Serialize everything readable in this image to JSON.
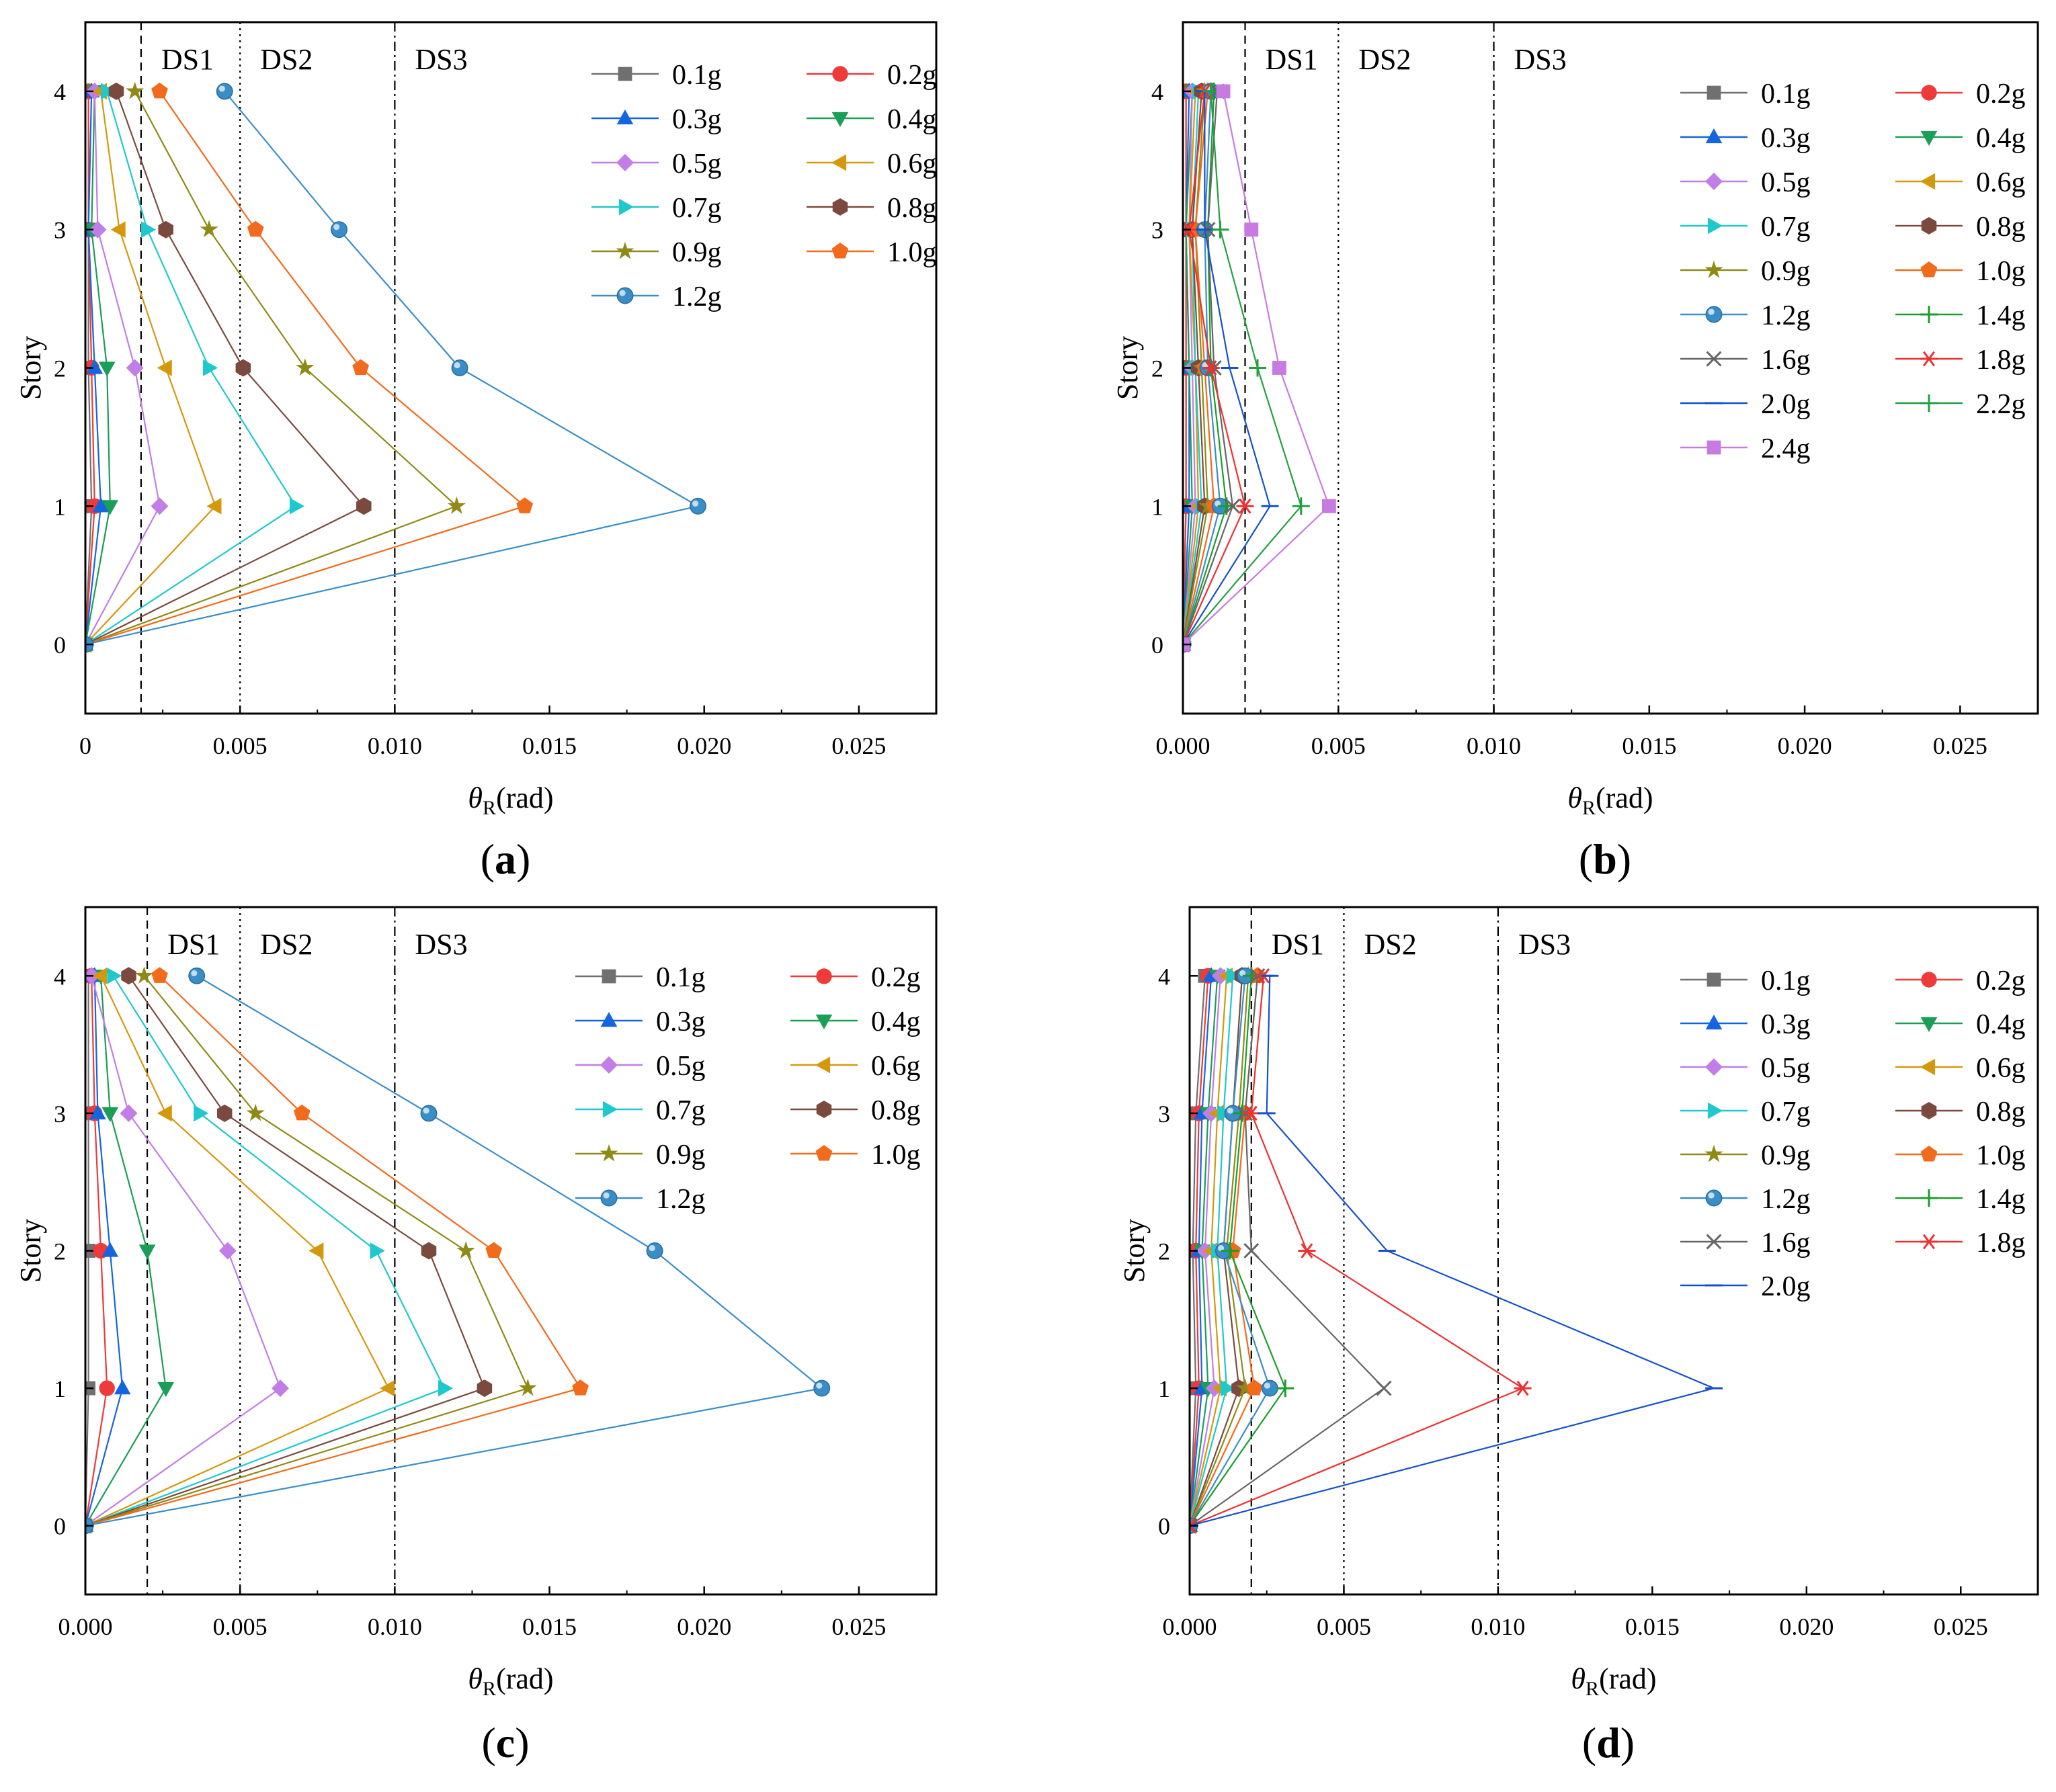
{
  "labels_common": {
    "ylabel": "Story",
    "xlabel_theta": "θ",
    "xlabel_sub": "R",
    "xlabel_unit": "(rad)"
  },
  "colors": {
    "0.1g": "#707070",
    "0.2g": "#ee3a3a",
    "0.3g": "#1565e0",
    "0.4g": "#1a9e58",
    "0.5g": "#c07ee6",
    "0.6g": "#d4980c",
    "0.7g": "#1ec8cc",
    "0.8g": "#7a4a3e",
    "0.9g": "#8f8a16",
    "1.0g": "#f26a1b",
    "1.2g": "#3a8ec8",
    "1.4g": "#1a9e2a",
    "1.6g": "#666666",
    "1.8g": "#ee3030",
    "2.0g": "#1650cc",
    "2.2g": "#22a040",
    "2.4g": "#c77be0"
  },
  "markers": {
    "0.1g": "square",
    "0.2g": "circle",
    "0.3g": "triangle-up",
    "0.4g": "triangle-down",
    "0.5g": "diamond",
    "0.6g": "triangle-left",
    "0.7g": "triangle-right",
    "0.8g": "hexagon",
    "0.9g": "star",
    "1.0g": "pentagon",
    "1.2g": "sphere",
    "1.4g": "plus",
    "1.6g": "cross",
    "1.8g": "asterisk",
    "2.0g": "dash",
    "2.2g": "plus",
    "2.4g": "square"
  },
  "chart_data": [
    {
      "panel": "(a)",
      "type": "line",
      "ylabel": "Story",
      "xlabel": "θR(rad)",
      "xlim": [
        0,
        0.0275
      ],
      "ylim": [
        -0.5,
        4.5
      ],
      "xticks": [
        0,
        0.005,
        0.01,
        0.015,
        0.02,
        0.025
      ],
      "xticklabels": [
        "0",
        "0.005",
        "0.010",
        "0.015",
        "0.020",
        "0.025"
      ],
      "yticks": [
        0,
        1,
        2,
        3,
        4
      ],
      "ds_lines": [
        {
          "x": 0.0018,
          "style": "dashed",
          "label": "DS1"
        },
        {
          "x": 0.005,
          "style": "dotted",
          "label": "DS2"
        },
        {
          "x": 0.01,
          "style": "dashdot",
          "label": "DS3"
        }
      ],
      "stories": [
        0,
        1,
        2,
        3,
        4
      ],
      "series": [
        {
          "name": "0.1g",
          "values": [
            0,
            0.0002,
            0.0001,
            0.0001,
            0.0001
          ]
        },
        {
          "name": "0.2g",
          "values": [
            0,
            0.0003,
            0.0002,
            0.0001,
            0.0001
          ]
        },
        {
          "name": "0.3g",
          "values": [
            0,
            0.0005,
            0.0003,
            0.0001,
            0.0002
          ]
        },
        {
          "name": "0.4g",
          "values": [
            0,
            0.0008,
            0.0007,
            0.0002,
            0.0003
          ]
        },
        {
          "name": "0.5g",
          "values": [
            0,
            0.0024,
            0.0016,
            0.0004,
            0.0003
          ]
        },
        {
          "name": "0.6g",
          "values": [
            0,
            0.0042,
            0.0026,
            0.0011,
            0.0005
          ]
        },
        {
          "name": "0.7g",
          "values": [
            0,
            0.0068,
            0.004,
            0.002,
            0.0007
          ]
        },
        {
          "name": "0.8g",
          "values": [
            0,
            0.009,
            0.0051,
            0.0026,
            0.001
          ]
        },
        {
          "name": "0.9g",
          "values": [
            0,
            0.012,
            0.0071,
            0.004,
            0.0016
          ]
        },
        {
          "name": "1.0g",
          "values": [
            0,
            0.0142,
            0.0089,
            0.0055,
            0.0024
          ]
        },
        {
          "name": "1.2g",
          "values": [
            0,
            0.0198,
            0.0121,
            0.0082,
            0.0045
          ]
        }
      ],
      "legend": {
        "columns": 2,
        "placement": "top-right"
      }
    },
    {
      "panel": "(b)",
      "type": "line",
      "ylabel": "Story",
      "xlabel": "θR(rad)",
      "xlim": [
        0,
        0.0275
      ],
      "ylim": [
        -0.5,
        4.5
      ],
      "xticks": [
        0,
        0.005,
        0.01,
        0.015,
        0.02,
        0.025
      ],
      "xticklabels": [
        "0.000",
        "0.005",
        "0.010",
        "0.015",
        "0.020",
        "0.025"
      ],
      "yticks": [
        0,
        1,
        2,
        3,
        4
      ],
      "ds_lines": [
        {
          "x": 0.002,
          "style": "dashed",
          "label": "DS1"
        },
        {
          "x": 0.005,
          "style": "dotted",
          "label": "DS2"
        },
        {
          "x": 0.01,
          "style": "dashdot",
          "label": "DS3"
        }
      ],
      "stories": [
        0,
        1,
        2,
        3,
        4
      ],
      "series": [
        {
          "name": "0.1g",
          "values": [
            0,
            0.0001,
            0.0001,
            0.0001,
            0.0001
          ]
        },
        {
          "name": "0.2g",
          "values": [
            0,
            0.0001,
            0.0001,
            0.0001,
            0.0001
          ]
        },
        {
          "name": "0.3g",
          "values": [
            0,
            0.0002,
            0.0002,
            0.0001,
            0.0002
          ]
        },
        {
          "name": "0.4g",
          "values": [
            0,
            0.0003,
            0.0002,
            0.0001,
            0.0003
          ]
        },
        {
          "name": "0.5g",
          "values": [
            0,
            0.0004,
            0.0003,
            0.0002,
            0.0003
          ]
        },
        {
          "name": "0.6g",
          "values": [
            0,
            0.0005,
            0.0004,
            0.0002,
            0.0004
          ]
        },
        {
          "name": "0.7g",
          "values": [
            0,
            0.0006,
            0.0004,
            0.0003,
            0.0005
          ]
        },
        {
          "name": "0.8g",
          "values": [
            0,
            0.0007,
            0.0005,
            0.0003,
            0.0006
          ]
        },
        {
          "name": "0.9g",
          "values": [
            0,
            0.0008,
            0.0006,
            0.0004,
            0.0007
          ]
        },
        {
          "name": "1.0g",
          "values": [
            0,
            0.001,
            0.0007,
            0.0004,
            0.0008
          ]
        },
        {
          "name": "1.2g",
          "values": [
            0,
            0.0012,
            0.0008,
            0.0007,
            0.0009
          ]
        },
        {
          "name": "1.4g",
          "values": [
            0,
            0.0014,
            0.0009,
            0.0008,
            0.001
          ]
        },
        {
          "name": "1.6g",
          "values": [
            0,
            0.0016,
            0.001,
            0.0008,
            0.0011
          ]
        },
        {
          "name": "1.8g",
          "values": [
            0,
            0.002,
            0.0009,
            0.0002,
            0.0007
          ]
        },
        {
          "name": "2.0g",
          "values": [
            0,
            0.0028,
            0.0015,
            0.0007,
            0.0007
          ]
        },
        {
          "name": "2.2g",
          "values": [
            0,
            0.0038,
            0.0024,
            0.0012,
            0.0009
          ]
        },
        {
          "name": "2.4g",
          "values": [
            0,
            0.0047,
            0.0031,
            0.0022,
            0.0013
          ]
        }
      ],
      "legend": {
        "columns": 2,
        "placement": "top-right"
      }
    },
    {
      "panel": "(c)",
      "type": "line",
      "ylabel": "Story",
      "xlabel": "θR(rad)",
      "xlim": [
        0,
        0.0275
      ],
      "ylim": [
        -0.5,
        4.5
      ],
      "xticks": [
        0,
        0.005,
        0.01,
        0.015,
        0.02,
        0.025
      ],
      "xticklabels": [
        "0.000",
        "0.005",
        "0.010",
        "0.015",
        "0.020",
        "0.025"
      ],
      "yticks": [
        0,
        1,
        2,
        3,
        4
      ],
      "ds_lines": [
        {
          "x": 0.002,
          "style": "dashed",
          "label": "DS1"
        },
        {
          "x": 0.005,
          "style": "dotted",
          "label": "DS2"
        },
        {
          "x": 0.01,
          "style": "dashdot",
          "label": "DS3"
        }
      ],
      "stories": [
        0,
        1,
        2,
        3,
        4
      ],
      "series": [
        {
          "name": "0.1g",
          "values": [
            0,
            0.0001,
            0.0001,
            0.0001,
            0.0001
          ]
        },
        {
          "name": "0.2g",
          "values": [
            0,
            0.0007,
            0.0005,
            0.0003,
            0.0002
          ]
        },
        {
          "name": "0.3g",
          "values": [
            0,
            0.0012,
            0.0008,
            0.0004,
            0.0003
          ]
        },
        {
          "name": "0.4g",
          "values": [
            0,
            0.0026,
            0.002,
            0.0008,
            0.0005
          ]
        },
        {
          "name": "0.5g",
          "values": [
            0,
            0.0063,
            0.0046,
            0.0014,
            0.0002
          ]
        },
        {
          "name": "0.6g",
          "values": [
            0,
            0.0098,
            0.0075,
            0.0026,
            0.0005
          ]
        },
        {
          "name": "0.7g",
          "values": [
            0,
            0.0116,
            0.0094,
            0.0037,
            0.0009
          ]
        },
        {
          "name": "0.8g",
          "values": [
            0,
            0.0129,
            0.0111,
            0.0045,
            0.0014
          ]
        },
        {
          "name": "0.9g",
          "values": [
            0,
            0.0143,
            0.0123,
            0.0055,
            0.0019
          ]
        },
        {
          "name": "1.0g",
          "values": [
            0,
            0.016,
            0.0132,
            0.007,
            0.0024
          ]
        },
        {
          "name": "1.2g",
          "values": [
            0,
            0.0238,
            0.0184,
            0.0111,
            0.0036
          ]
        }
      ],
      "legend": {
        "columns": 2,
        "placement": "top-right"
      }
    },
    {
      "panel": "(d)",
      "type": "line",
      "ylabel": "Story",
      "xlabel": "θR(rad)",
      "xlim": [
        0,
        0.0275
      ],
      "ylim": [
        -0.5,
        4.5
      ],
      "xticks": [
        0,
        0.005,
        0.01,
        0.015,
        0.02,
        0.025
      ],
      "xticklabels": [
        "0.000",
        "0.005",
        "0.010",
        "0.015",
        "0.020",
        "0.025"
      ],
      "yticks": [
        0,
        1,
        2,
        3,
        4
      ],
      "ds_lines": [
        {
          "x": 0.002,
          "style": "dashed",
          "label": "DS1"
        },
        {
          "x": 0.005,
          "style": "dotted",
          "label": "DS2"
        },
        {
          "x": 0.01,
          "style": "dashdot",
          "label": "DS3"
        }
      ],
      "stories": [
        0,
        1,
        2,
        3,
        4
      ],
      "series": [
        {
          "name": "0.1g",
          "values": [
            0,
            0.0002,
            0.0001,
            0.0002,
            0.0005
          ]
        },
        {
          "name": "0.2g",
          "values": [
            0,
            0.0003,
            0.0002,
            0.0003,
            0.0006
          ]
        },
        {
          "name": "0.3g",
          "values": [
            0,
            0.0004,
            0.0003,
            0.0004,
            0.0007
          ]
        },
        {
          "name": "0.4g",
          "values": [
            0,
            0.0006,
            0.0004,
            0.0006,
            0.0009
          ]
        },
        {
          "name": "0.5g",
          "values": [
            0,
            0.0008,
            0.0005,
            0.0007,
            0.001
          ]
        },
        {
          "name": "0.6g",
          "values": [
            0,
            0.001,
            0.0007,
            0.0009,
            0.0012
          ]
        },
        {
          "name": "0.7g",
          "values": [
            0,
            0.0012,
            0.0009,
            0.0011,
            0.0014
          ]
        },
        {
          "name": "0.8g",
          "values": [
            0,
            0.0016,
            0.0011,
            0.0014,
            0.0017
          ]
        },
        {
          "name": "0.9g",
          "values": [
            0,
            0.0018,
            0.0012,
            0.0016,
            0.0019
          ]
        },
        {
          "name": "1.0g",
          "values": [
            0,
            0.0021,
            0.0014,
            0.0018,
            0.0022
          ]
        },
        {
          "name": "1.2g",
          "values": [
            0,
            0.0026,
            0.0011,
            0.0014,
            0.0018
          ]
        },
        {
          "name": "1.4g",
          "values": [
            0,
            0.0031,
            0.0013,
            0.0017,
            0.002
          ]
        },
        {
          "name": "1.6g",
          "values": [
            0,
            0.0063,
            0.002,
            0.0018,
            0.0022
          ]
        },
        {
          "name": "1.8g",
          "values": [
            0,
            0.0108,
            0.0038,
            0.002,
            0.0024
          ]
        },
        {
          "name": "2.0g",
          "values": [
            0,
            0.017,
            0.0064,
            0.0025,
            0.0026
          ]
        }
      ],
      "legend": {
        "columns": 2,
        "placement": "top-right"
      }
    }
  ]
}
